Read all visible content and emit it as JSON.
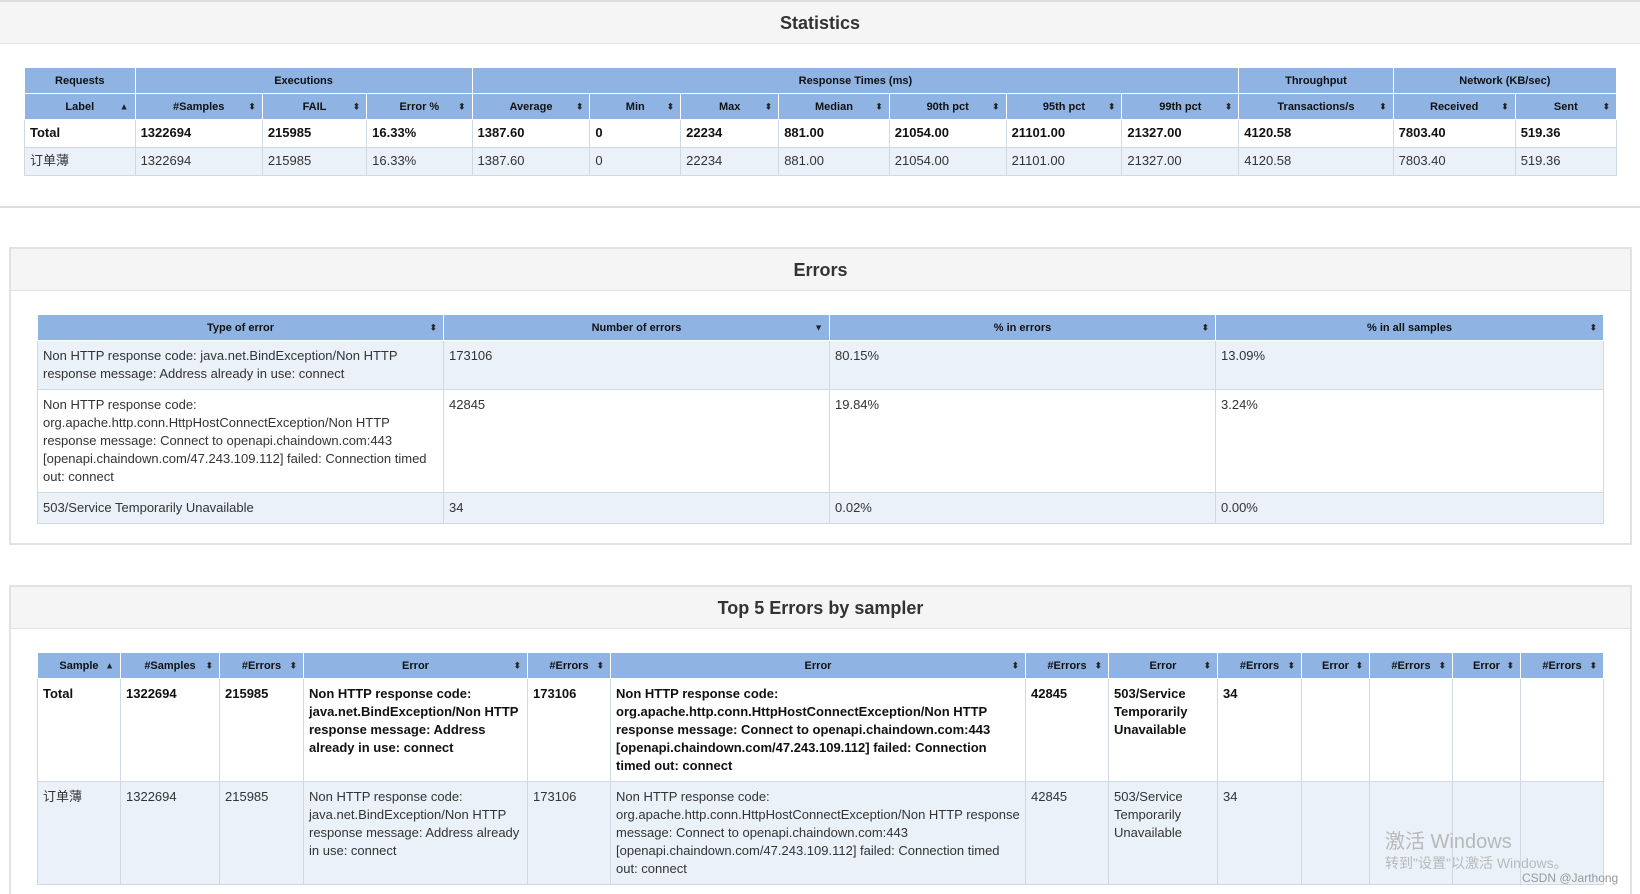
{
  "statistics": {
    "title": "Statistics",
    "group_headers": [
      "Requests",
      "Executions",
      "Response Times (ms)",
      "Throughput",
      "Network (KB/sec)"
    ],
    "columns": [
      "Label",
      "#Samples",
      "FAIL",
      "Error %",
      "Average",
      "Min",
      "Max",
      "Median",
      "90th pct",
      "95th pct",
      "99th pct",
      "Transactions/s",
      "Received",
      "Sent"
    ],
    "rows": [
      [
        "Total",
        "1322694",
        "215985",
        "16.33%",
        "1387.60",
        "0",
        "22234",
        "881.00",
        "21054.00",
        "21101.00",
        "21327.00",
        "4120.58",
        "7803.40",
        "519.36"
      ],
      [
        "订单薄",
        "1322694",
        "215985",
        "16.33%",
        "1387.60",
        "0",
        "22234",
        "881.00",
        "21054.00",
        "21101.00",
        "21327.00",
        "4120.58",
        "7803.40",
        "519.36"
      ]
    ]
  },
  "errors": {
    "title": "Errors",
    "columns": [
      "Type of error",
      "Number of errors",
      "% in errors",
      "% in all samples"
    ],
    "rows": [
      [
        "Non HTTP response code: java.net.BindException/Non HTTP response message: Address already in use: connect",
        "173106",
        "80.15%",
        "13.09%"
      ],
      [
        "Non HTTP response code: org.apache.http.conn.HttpHostConnectException/Non HTTP response message: Connect to openapi.chaindown.com:443 [openapi.chaindown.com/47.243.109.112] failed: Connection timed out: connect",
        "42845",
        "19.84%",
        "3.24%"
      ],
      [
        "503/Service Temporarily Unavailable",
        "34",
        "0.02%",
        "0.00%"
      ]
    ]
  },
  "top5": {
    "title": "Top 5 Errors by sampler",
    "columns": [
      "Sample",
      "#Samples",
      "#Errors",
      "Error",
      "#Errors",
      "Error",
      "#Errors",
      "Error",
      "#Errors",
      "Error",
      "#Errors",
      "Error",
      "#Errors"
    ],
    "rows": [
      [
        "Total",
        "1322694",
        "215985",
        "Non HTTP response code: java.net.BindException/Non HTTP response message: Address already in use: connect",
        "173106",
        "Non HTTP response code: org.apache.http.conn.HttpHostConnectException/Non HTTP response message: Connect to openapi.chaindown.com:443 [openapi.chaindown.com/47.243.109.112] failed: Connection timed out: connect",
        "42845",
        "503/Service Temporarily Unavailable",
        "34",
        "",
        "",
        "",
        ""
      ],
      [
        "订单薄",
        "1322694",
        "215985",
        "Non HTTP response code: java.net.BindException/Non HTTP response message: Address already in use: connect",
        "173106",
        "Non HTTP response code: org.apache.http.conn.HttpHostConnectException/Non HTTP response message: Connect to openapi.chaindown.com:443 [openapi.chaindown.com/47.243.109.112] failed: Connection timed out: connect",
        "42845",
        "503/Service Temporarily Unavailable",
        "34",
        "",
        "",
        "",
        ""
      ]
    ]
  },
  "watermark": {
    "line1": "激活 Windows",
    "line2": "转到\"设置\"以激活 Windows。"
  },
  "credit": "CSDN @Jarthong",
  "colors": {
    "header_bg": "#8fb4e3",
    "row_alt_bg": "#eaf1f9"
  }
}
